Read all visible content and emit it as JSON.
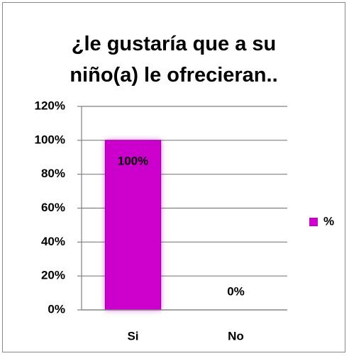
{
  "chart_data": {
    "type": "bar",
    "title": "¿le gustaría que a su niño(a) le ofrecieran..",
    "categories": [
      "Si",
      "No"
    ],
    "series": [
      {
        "name": "%",
        "color": "#cc00cc",
        "values": [
          100,
          0
        ],
        "value_labels": [
          "100%",
          "0%"
        ]
      }
    ],
    "ylim": [
      0,
      120
    ],
    "yticks": [
      {
        "value": 0,
        "label": "0%"
      },
      {
        "value": 20,
        "label": "20%"
      },
      {
        "value": 40,
        "label": "40%"
      },
      {
        "value": 60,
        "label": "60%"
      },
      {
        "value": 80,
        "label": "80%"
      },
      {
        "value": 100,
        "label": "100%"
      },
      {
        "value": 120,
        "label": "120%"
      }
    ],
    "grid": true,
    "legend": "right"
  }
}
